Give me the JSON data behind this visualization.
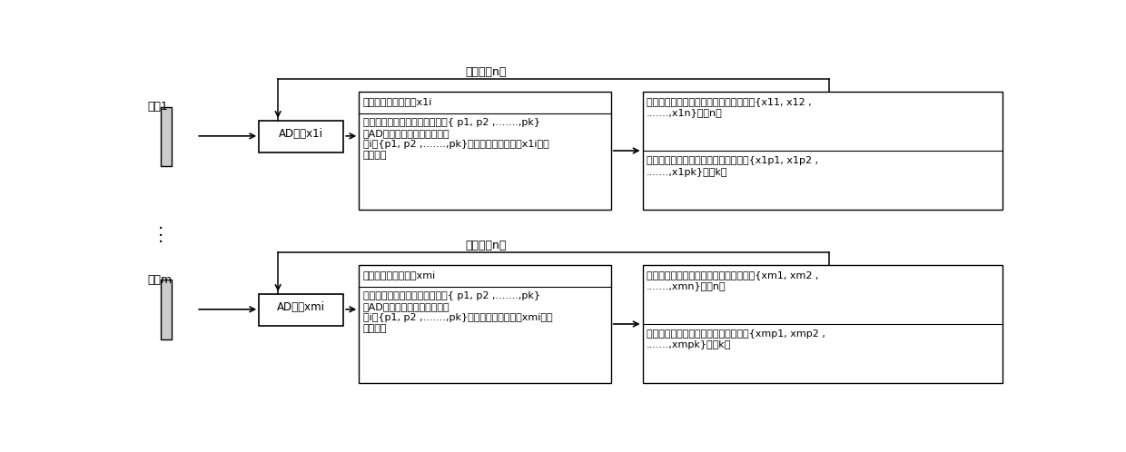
{
  "bg_color": "#ffffff",
  "loop_label": "循环采样n次",
  "row1": {
    "pulse_label": "脉冲1",
    "ad_label": "AD采样x1i",
    "mid_line1": "传统方法：直接存储x1i",
    "mid_line2": "本发明：通过光栅空间位置信息{ p1, p2 ,.......,pk}",
    "mid_line3": "对AD采样数据进行实时筛选。",
    "mid_line4": "当i＝{p1, p2 ,.......,pk}中任一个，进行存储x1i；否",
    "mid_line5": "则不存储",
    "right_top1": "传统方法：单脉冲触发采样存储的数据为{x11, x12 ,",
    "right_top2": ".......,x1n}，共n个",
    "right_bot1": "本发明：单脉冲触发采样存储的数据为{x1p1, x1p2 ,",
    "right_bot2": ".......,x1pk}，共k个"
  },
  "row2": {
    "pulse_label": "脉冲m",
    "ad_label": "AD采样xmi",
    "mid_line1": "传统方法：直接存储xmi",
    "mid_line2": "本发明：通过光栅空间位置信息{ p1, p2 ,.......,pk}",
    "mid_line3": "对AD采样数据进行实时筛选。",
    "mid_line4": "当i＝{p1, p2 ,.......,pk}中任一个，进行存储xmi；否",
    "mid_line5": "则不存储",
    "right_top1": "传统方法：单脉冲触发采样存储的数据为{xm1, xm2 ,",
    "right_top2": ".......,xmn}，共n个",
    "right_bot1": "本发明：单脉冲触发采样存储的数据为{xmp1, xmp2 ,",
    "right_bot2": ".......,xmpk}，共k个"
  }
}
